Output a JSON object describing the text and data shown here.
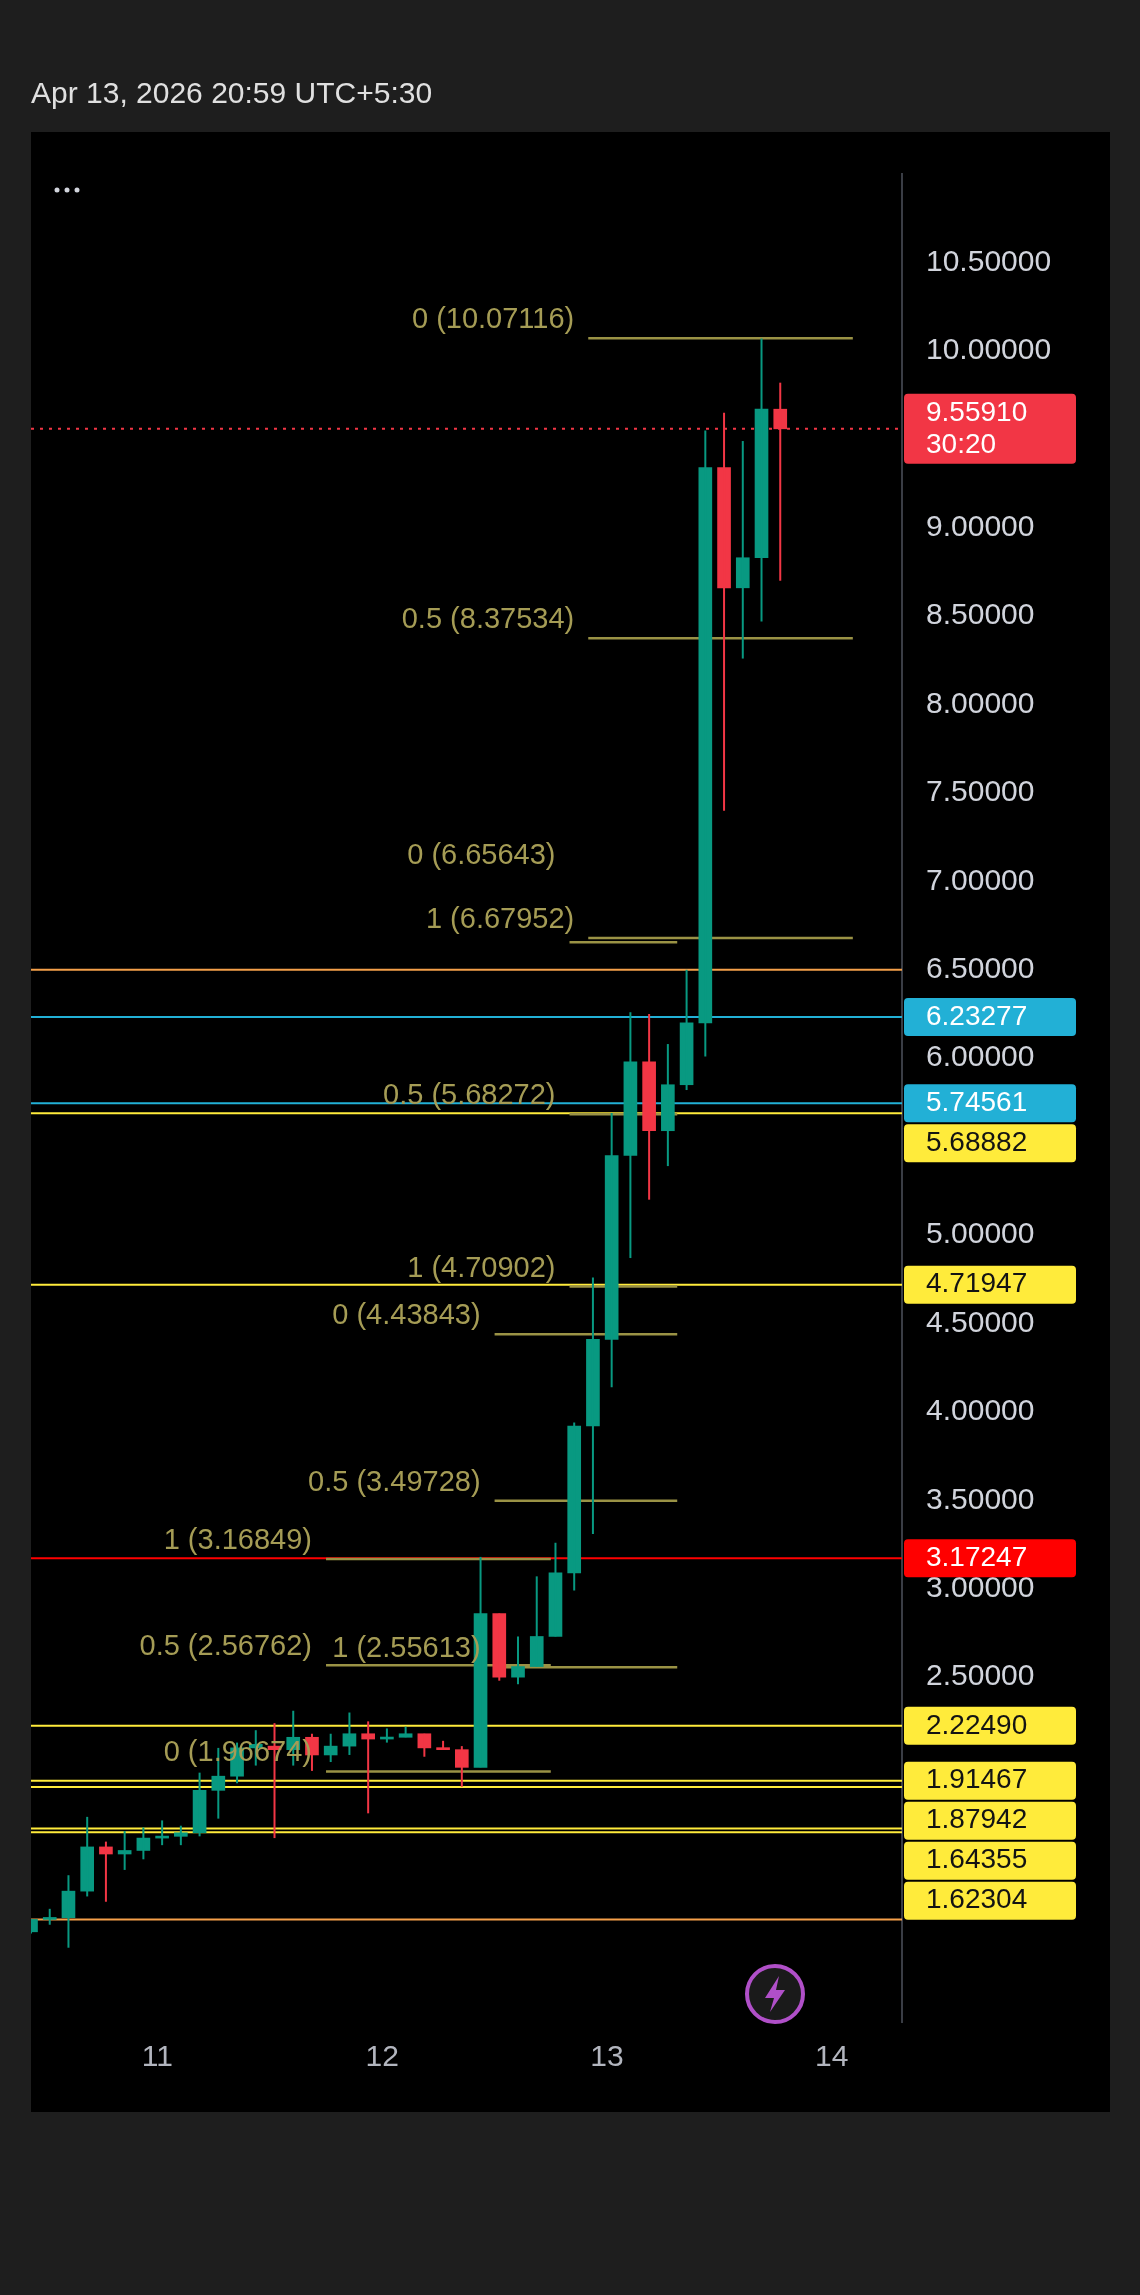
{
  "chart_data": {
    "type": "candlestick",
    "x": [
      "2026-04-10T10:30",
      "2026-04-10T12:30",
      "2026-04-10T14:30",
      "2026-04-10T16:30",
      "2026-04-10T18:30",
      "2026-04-10T20:30",
      "2026-04-10T22:30",
      "2026-04-11T00:30",
      "2026-04-11T02:30",
      "2026-04-11T04:30",
      "2026-04-11T06:30",
      "2026-04-11T08:30",
      "2026-04-11T10:30",
      "2026-04-11T12:30",
      "2026-04-11T14:30",
      "2026-04-11T16:30",
      "2026-04-11T18:30",
      "2026-04-11T20:30",
      "2026-04-11T22:30",
      "2026-04-12T00:30",
      "2026-04-12T02:30",
      "2026-04-12T04:30",
      "2026-04-12T06:30",
      "2026-04-12T08:30",
      "2026-04-12T10:30",
      "2026-04-12T12:30",
      "2026-04-12T14:30",
      "2026-04-12T16:30",
      "2026-04-12T18:30",
      "2026-04-12T20:30",
      "2026-04-12T22:30",
      "2026-04-13T00:30",
      "2026-04-13T02:30",
      "2026-04-13T04:30",
      "2026-04-13T06:30",
      "2026-04-13T08:30",
      "2026-04-13T10:30",
      "2026-04-13T12:30",
      "2026-04-13T14:30",
      "2026-04-13T16:30",
      "2026-04-13T18:30"
    ],
    "ohlc": [
      [
        1.06,
        1.13,
        1.05,
        1.13
      ],
      [
        1.13,
        1.19,
        1.1,
        1.14
      ],
      [
        1.14,
        1.38,
        0.97,
        1.29
      ],
      [
        1.29,
        1.71,
        1.26,
        1.54
      ],
      [
        1.54,
        1.57,
        1.23,
        1.5
      ],
      [
        1.5,
        1.63,
        1.41,
        1.52
      ],
      [
        1.52,
        1.65,
        1.47,
        1.59
      ],
      [
        1.59,
        1.69,
        1.55,
        1.6
      ],
      [
        1.6,
        1.66,
        1.55,
        1.62
      ],
      [
        1.62,
        1.96,
        1.6,
        1.86
      ],
      [
        1.86,
        2.1,
        1.7,
        1.94
      ],
      [
        1.94,
        2.13,
        1.9,
        2.1
      ],
      [
        2.1,
        2.2,
        2.0,
        2.12
      ],
      [
        2.11,
        2.24,
        1.59,
        2.09
      ],
      [
        2.09,
        2.31,
        2.0,
        2.16
      ],
      [
        2.16,
        2.18,
        1.97,
        2.06
      ],
      [
        2.06,
        2.18,
        2.02,
        2.11
      ],
      [
        2.11,
        2.3,
        2.06,
        2.18
      ],
      [
        2.18,
        2.25,
        1.73,
        2.15
      ],
      [
        2.15,
        2.21,
        2.13,
        2.16
      ],
      [
        2.16,
        2.22,
        2.16,
        2.18
      ],
      [
        2.18,
        2.18,
        2.05,
        2.1
      ],
      [
        2.1,
        2.14,
        2.09,
        2.09
      ],
      [
        2.09,
        2.11,
        1.88,
        1.99
      ],
      [
        1.99,
        3.18,
        1.99,
        2.86
      ],
      [
        2.86,
        2.86,
        2.48,
        2.5
      ],
      [
        2.5,
        2.73,
        2.46,
        2.56
      ],
      [
        2.56,
        3.07,
        2.56,
        2.73
      ],
      [
        2.73,
        3.26,
        2.73,
        3.09
      ],
      [
        3.09,
        3.94,
        2.99,
        3.92
      ],
      [
        3.92,
        4.76,
        3.31,
        4.41
      ],
      [
        4.41,
        5.69,
        4.14,
        5.45
      ],
      [
        5.45,
        6.26,
        4.87,
        5.98
      ],
      [
        5.98,
        6.25,
        5.2,
        5.59
      ],
      [
        5.59,
        6.08,
        5.39,
        5.85
      ],
      [
        5.85,
        6.5,
        5.82,
        6.2
      ],
      [
        6.2,
        9.55,
        6.01,
        9.34
      ],
      [
        9.34,
        9.65,
        7.4,
        8.66
      ],
      [
        8.66,
        9.49,
        8.26,
        8.83
      ],
      [
        8.83,
        10.07,
        8.47,
        9.67
      ],
      [
        9.67,
        9.82,
        8.7,
        9.5591
      ]
    ],
    "colors": [
      "#089981",
      "#089981",
      "#089981",
      "#089981",
      "#f23645",
      "#089981",
      "#089981",
      "#089981",
      "#089981",
      "#089981",
      "#089981",
      "#089981",
      "#089981",
      "#f23645",
      "#089981",
      "#f23645",
      "#089981",
      "#089981",
      "#f23645",
      "#089981",
      "#089981",
      "#f23645",
      "#f23645",
      "#f23645",
      "#089981",
      "#f23645",
      "#089981",
      "#089981",
      "#089981",
      "#089981",
      "#089981",
      "#089981",
      "#089981",
      "#f23645",
      "#089981",
      "#089981",
      "#089981",
      "#f23645",
      "#089981",
      "#089981",
      "#f23645"
    ],
    "series": [
      {
        "type": "line",
        "color": "#9a9245",
        "x": [
          "2026-04-12T22:00",
          "2026-04-14T02:15"
        ],
        "values": [
          10.07116,
          10.07116
        ]
      },
      {
        "type": "line",
        "color": "#9a9245",
        "x": [
          "2026-04-12T22:00",
          "2026-04-14T02:15"
        ],
        "values": [
          8.37534,
          8.37534
        ]
      },
      {
        "type": "line",
        "color": "#9a9245",
        "x": [
          "2026-04-12T22:00",
          "2026-04-14T02:15"
        ],
        "values": [
          6.67952,
          6.67952
        ]
      },
      {
        "type": "line",
        "color": "#9a9245",
        "x": [
          "2026-04-12T20:00",
          "2026-04-13T07:30"
        ],
        "values": [
          6.65643,
          6.65643
        ]
      },
      {
        "type": "line",
        "color": "#9a9245",
        "x": [
          "2026-04-12T20:00",
          "2026-04-13T07:30"
        ],
        "values": [
          5.68272,
          5.68272
        ]
      },
      {
        "type": "line",
        "color": "#9a9245",
        "x": [
          "2026-04-12T20:00",
          "2026-04-13T07:30"
        ],
        "values": [
          4.70902,
          4.70902
        ]
      },
      {
        "type": "line",
        "color": "#9a9245",
        "x": [
          "2026-04-12T12:00",
          "2026-04-13T07:30"
        ],
        "values": [
          4.43843,
          4.43843
        ]
      },
      {
        "type": "line",
        "color": "#9a9245",
        "x": [
          "2026-04-12T12:00",
          "2026-04-13T07:30"
        ],
        "values": [
          3.49728,
          3.49728
        ]
      },
      {
        "type": "line",
        "color": "#9a9245",
        "x": [
          "2026-04-12T12:00",
          "2026-04-13T07:30"
        ],
        "values": [
          2.55613,
          2.55613
        ]
      },
      {
        "type": "line",
        "color": "#9a9245",
        "x": [
          "2026-04-11T18:00",
          "2026-04-12T18:00"
        ],
        "values": [
          3.16849,
          3.16849
        ]
      },
      {
        "type": "line",
        "color": "#9a9245",
        "x": [
          "2026-04-11T18:00",
          "2026-04-12T18:00"
        ],
        "values": [
          2.56762,
          2.56762
        ]
      },
      {
        "type": "line",
        "color": "#9a9245",
        "x": [
          "2026-04-11T18:00",
          "2026-04-12T18:00"
        ],
        "values": [
          1.96674,
          1.96674
        ]
      }
    ],
    "annotations": [
      "Apr 13, 2026 20:59 UTC+5:30",
      {
        "text": "0 (10.07116)",
        "x": "2026-04-12T22:00",
        "y": 10.07116
      },
      {
        "text": "0.5 (8.37534)",
        "x": "2026-04-12T22:00",
        "y": 8.37534
      },
      {
        "text": "1 (6.67952)",
        "x": "2026-04-12T22:00",
        "y": 6.67952
      },
      {
        "text": "0 (6.65643)",
        "x": "2026-04-12T20:00",
        "y": 6.65643
      },
      {
        "text": "0.5 (5.68272)",
        "x": "2026-04-12T20:00",
        "y": 5.68272
      },
      {
        "text": "1 (4.70902)",
        "x": "2026-04-12T20:00",
        "y": 4.70902
      },
      {
        "text": "0 (4.43843)",
        "x": "2026-04-12T12:00",
        "y": 4.43843
      },
      {
        "text": "0.5 (3.49728)",
        "x": "2026-04-12T12:00",
        "y": 3.49728
      },
      {
        "text": "1 (2.55613)",
        "x": "2026-04-12T12:00",
        "y": 2.55613
      },
      {
        "text": "1 (3.16849)",
        "x": "2026-04-11T18:00",
        "y": 3.16849
      },
      {
        "text": "0.5 (2.56762)",
        "x": "2026-04-11T18:00",
        "y": 2.56762
      },
      {
        "text": "0 (1.96674)",
        "x": "2026-04-11T18:00",
        "y": 1.96674
      }
    ],
    "ref_lines": [
      {
        "axis": "y",
        "value": 9.5591,
        "label": "9.55910\n30:20",
        "color": "#f23645",
        "line_style": "dotted"
      },
      {
        "axis": "y",
        "value": 6.23277,
        "label": "6.23277",
        "color": "#22b0d6"
      },
      {
        "axis": "y",
        "value": 5.74561,
        "label": "5.74561",
        "color": "#22b0d6"
      },
      {
        "axis": "y",
        "value": 5.68882,
        "label": "5.68882",
        "color": "#ffeb3b"
      },
      {
        "axis": "y",
        "value": 4.71947,
        "label": "4.71947",
        "color": "#ffeb3b"
      },
      {
        "axis": "y",
        "value": 3.17247,
        "label": "3.17247",
        "color": "#ff0000"
      },
      {
        "axis": "y",
        "value": 2.2249,
        "label": "2.22490",
        "color": "#ffeb3b"
      },
      {
        "axis": "y",
        "value": 1.91467,
        "label": "1.91467",
        "color": "#ffeb3b"
      },
      {
        "axis": "y",
        "value": 1.87942,
        "label": "1.87942",
        "color": "#ffeb3b"
      },
      {
        "axis": "y",
        "value": 1.64355,
        "label": "1.64355",
        "color": "#ffeb3b"
      },
      {
        "axis": "y",
        "value": 1.62304,
        "label": "1.62304",
        "color": "#ffeb3b"
      },
      {
        "axis": "y",
        "value": 6.5,
        "color": "#f5a04a"
      },
      {
        "axis": "y",
        "value": 1.13,
        "color": "#f5a04a"
      }
    ],
    "xlim": [
      "2026-04-10T10:30",
      "2026-04-14T07:30"
    ],
    "xticks": [
      {
        "value": "2026-04-11",
        "label": "11"
      },
      {
        "value": "2026-04-12",
        "label": "12"
      },
      {
        "value": "2026-04-13",
        "label": "13"
      },
      {
        "value": "2026-04-14",
        "label": "14"
      }
    ],
    "ylim": [
      0.55,
      11.0
    ],
    "yticks": [
      {
        "value": 2.5,
        "label": "2.50000"
      },
      {
        "value": 3,
        "label": "3.00000"
      },
      {
        "value": 3.5,
        "label": "3.50000"
      },
      {
        "value": 4,
        "label": "4.00000"
      },
      {
        "value": 4.5,
        "label": "4.50000"
      },
      {
        "value": 5,
        "label": "5.00000"
      },
      {
        "value": 6,
        "label": "6.00000"
      },
      {
        "value": 6.5,
        "label": "6.50000"
      },
      {
        "value": 7,
        "label": "7.00000"
      },
      {
        "value": 7.5,
        "label": "7.50000"
      },
      {
        "value": 8,
        "label": "8.00000"
      },
      {
        "value": 8.5,
        "label": "8.50000"
      },
      {
        "value": 9,
        "label": "9.00000"
      },
      {
        "value": 10,
        "label": "10.00000"
      },
      {
        "value": 10.5,
        "label": "10.50000"
      }
    ],
    "grid": false,
    "legend": false
  }
}
